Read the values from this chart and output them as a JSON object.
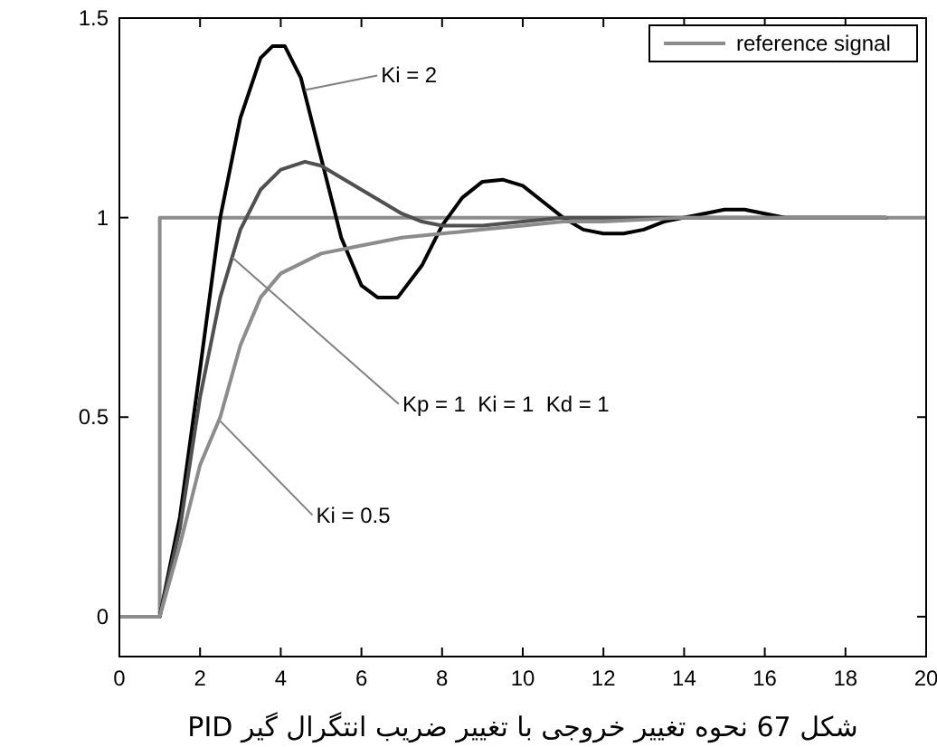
{
  "chart_data": {
    "type": "line",
    "xlim": [
      0,
      20
    ],
    "ylim": [
      -0.1,
      1.5
    ],
    "xticks": [
      0,
      2,
      4,
      6,
      8,
      10,
      12,
      14,
      16,
      18,
      20
    ],
    "yticks": [
      0,
      0.5,
      1,
      1.5
    ],
    "grid": false,
    "legend": "top right",
    "marker": "none",
    "line_style": "solid",
    "series": [
      {
        "name": "reference signal",
        "color": "#8c8c8c",
        "x": [
          0,
          1,
          1,
          20
        ],
        "values": [
          0,
          0,
          1,
          1
        ]
      },
      {
        "color": "#000000",
        "x": [
          0,
          1,
          1.5,
          2,
          2.5,
          3,
          3.5,
          3.8,
          4.1,
          4.5,
          5,
          5.5,
          6,
          6.4,
          6.9,
          7.5,
          8,
          8.5,
          9,
          9.5,
          10,
          10.5,
          11,
          11.5,
          12,
          12.5,
          13,
          13.5,
          14,
          14.5,
          15,
          15.5,
          16,
          16.5,
          17,
          18,
          19
        ],
        "values": [
          0,
          0,
          0.25,
          0.62,
          1.0,
          1.25,
          1.4,
          1.43,
          1.43,
          1.35,
          1.15,
          0.95,
          0.83,
          0.8,
          0.8,
          0.88,
          0.98,
          1.05,
          1.09,
          1.095,
          1.08,
          1.04,
          1.0,
          0.97,
          0.96,
          0.96,
          0.97,
          0.99,
          1.0,
          1.01,
          1.02,
          1.02,
          1.01,
          1.0,
          1.0,
          1.0,
          1.0
        ]
      },
      {
        "color": "#505050",
        "x": [
          0,
          1,
          1.5,
          2,
          2.5,
          3,
          3.5,
          4,
          4.6,
          5,
          5.5,
          6,
          6.5,
          7,
          7.5,
          8,
          8.5,
          9,
          10,
          11,
          12,
          14,
          16,
          19
        ],
        "values": [
          0,
          0,
          0.22,
          0.55,
          0.8,
          0.97,
          1.07,
          1.12,
          1.14,
          1.13,
          1.1,
          1.07,
          1.04,
          1.01,
          0.99,
          0.98,
          0.98,
          0.98,
          0.99,
          1.0,
          1.0,
          1.0,
          1.0,
          1.0
        ]
      },
      {
        "color": "#8c8c8c",
        "x": [
          0,
          1,
          1.5,
          2,
          2.5,
          3,
          3.5,
          4,
          5,
          6,
          7,
          8,
          9,
          10,
          11,
          12,
          14,
          16,
          19
        ],
        "values": [
          0,
          0,
          0.18,
          0.38,
          0.5,
          0.68,
          0.8,
          0.86,
          0.91,
          0.93,
          0.95,
          0.96,
          0.97,
          0.98,
          0.99,
          0.99,
          1.0,
          1.0,
          1.0
        ]
      }
    ],
    "annotations": [
      {
        "text": "Ki = 2",
        "x": 4.6,
        "y": 1.32
      },
      {
        "text": "Kp = 1  Ki = 1  Kd = 1",
        "x": 2.8,
        "y": 0.9
      },
      {
        "text": "Ki = 0.5",
        "x": 2.5,
        "y": 0.49
      },
      "شکل 67 نحوه تغییر خروجی با تغییر ضریب انتگرال گیر PID"
    ]
  }
}
